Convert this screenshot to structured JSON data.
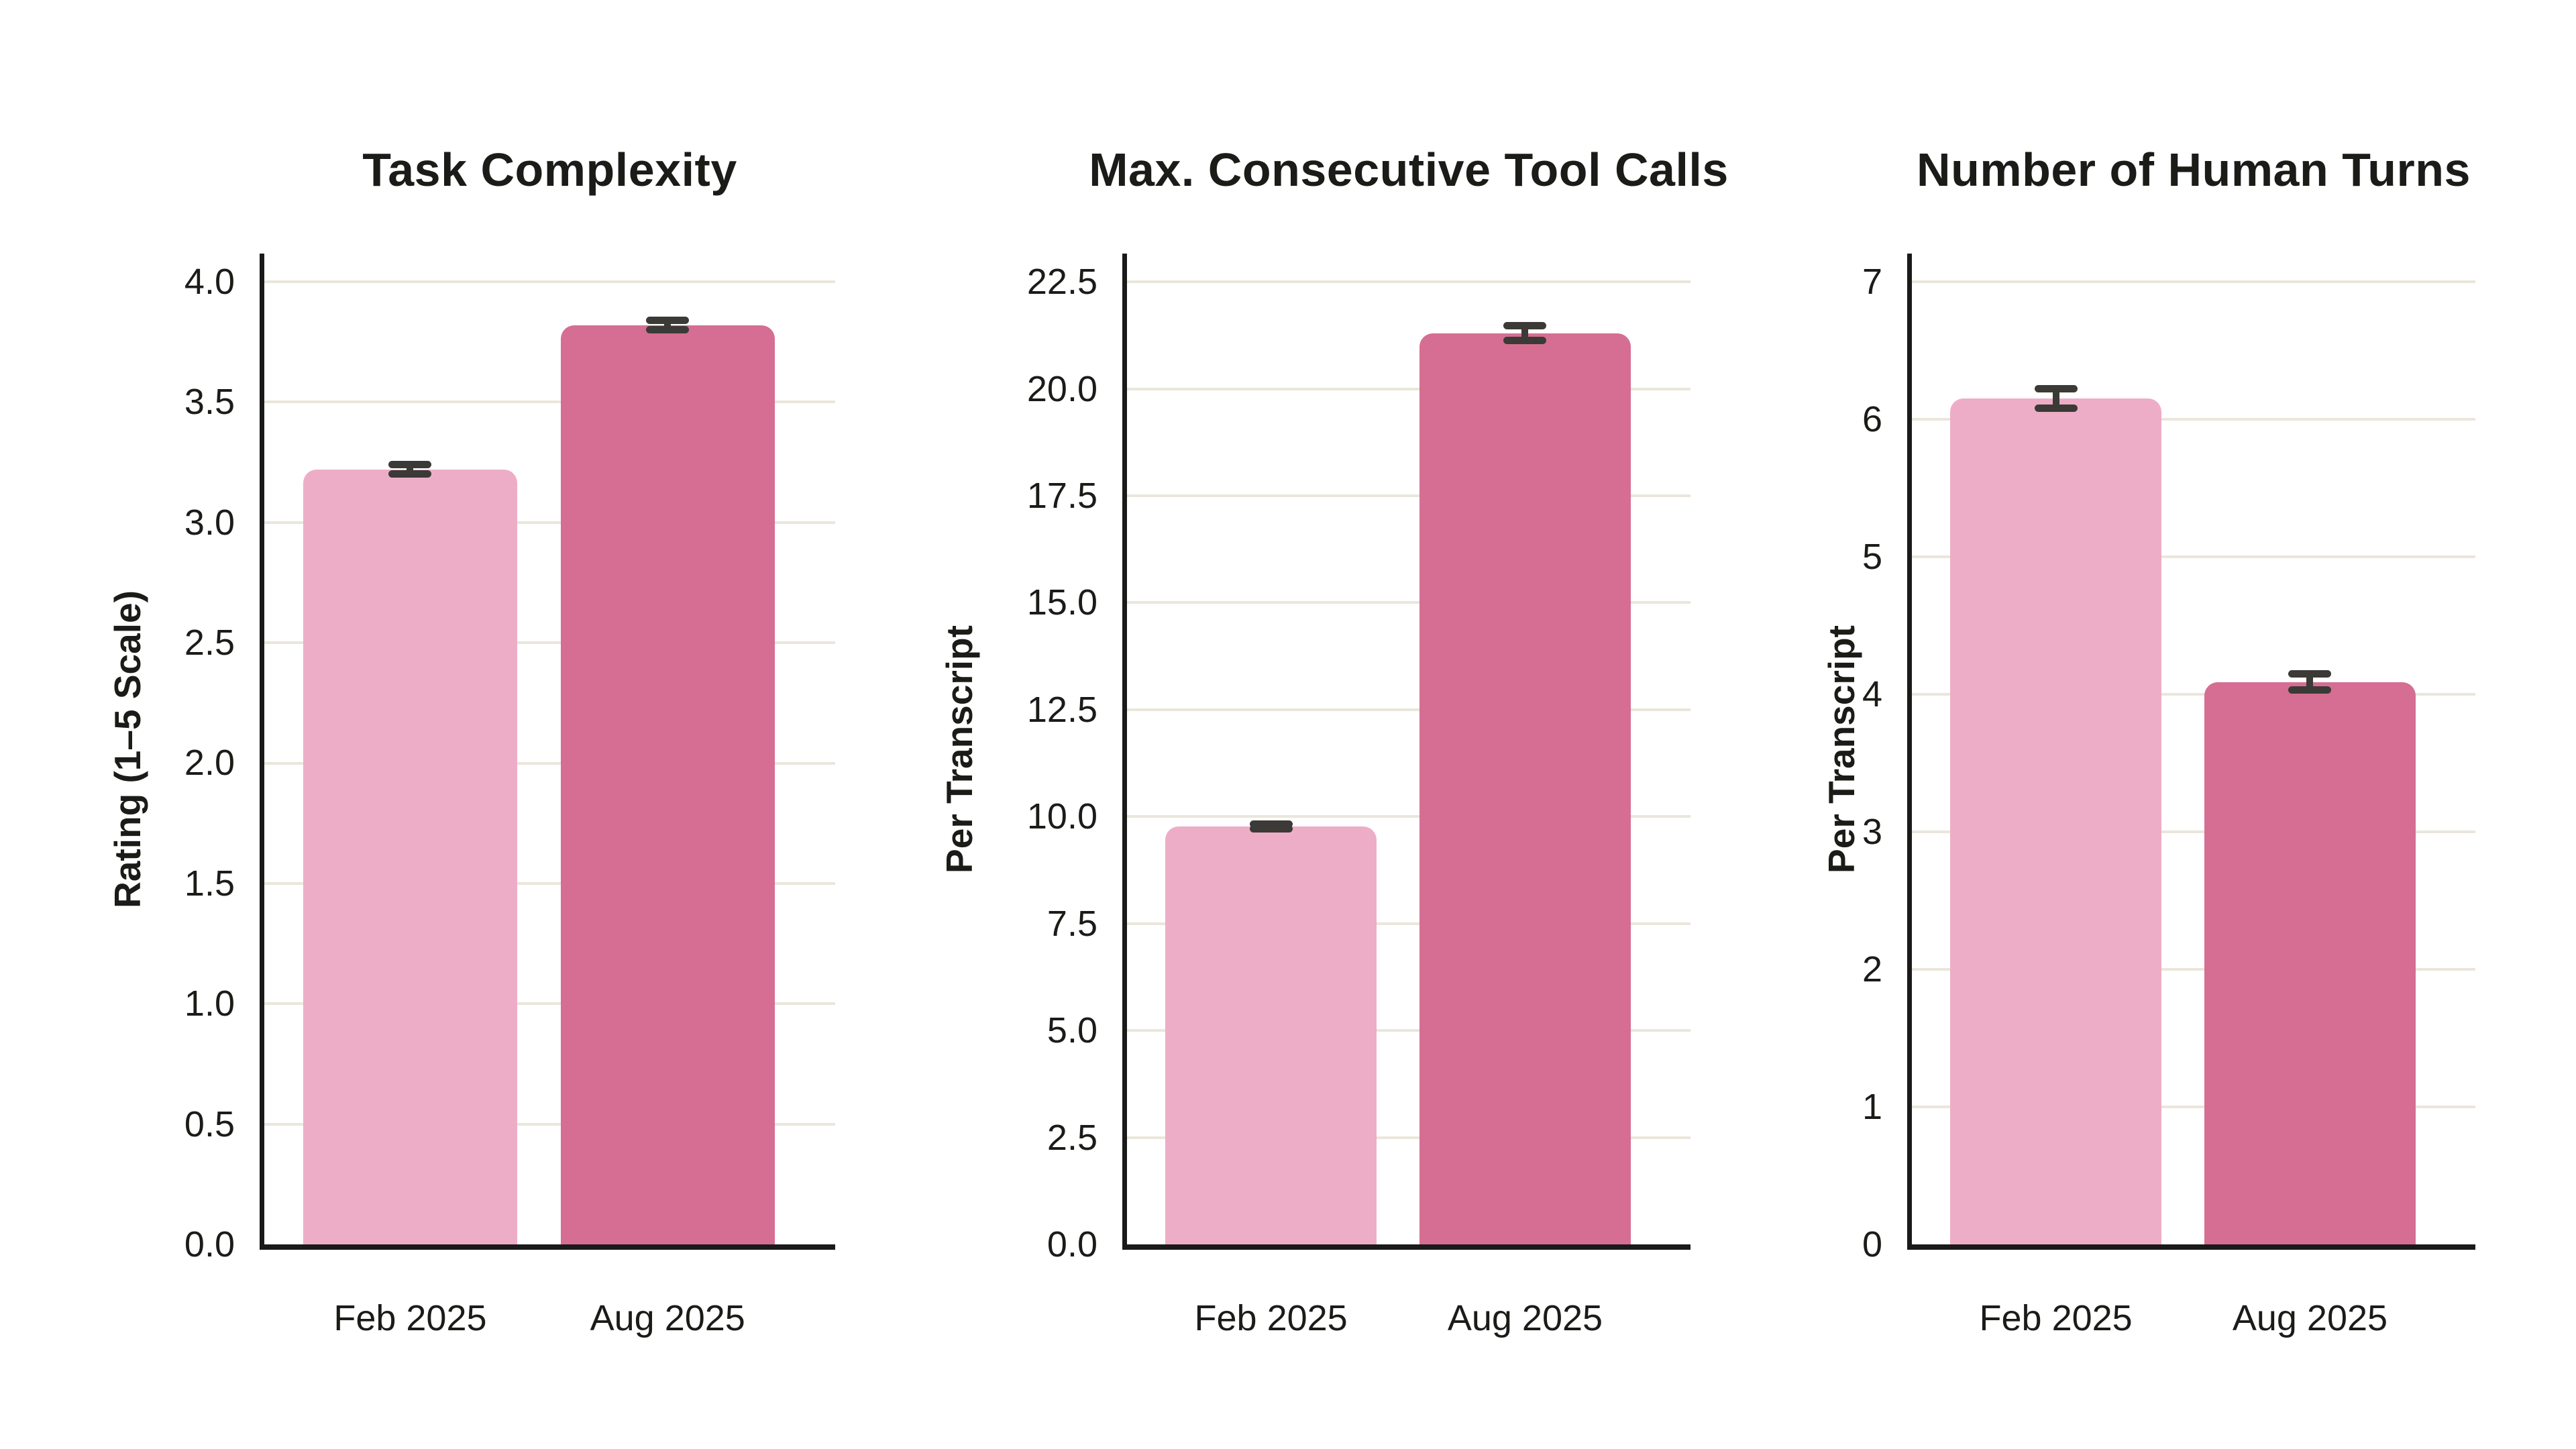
{
  "colors": {
    "background": "#ffffff",
    "text": "#1b1b18",
    "axis": "#1a1a1a",
    "grid": "#ebe6dc",
    "error_bar": "#3b3a36",
    "light_pink": "#eeadc6",
    "dark_pink": "#d56e92"
  },
  "chart_data": [
    {
      "type": "bar",
      "title": "Task Complexity",
      "ylabel": "Rating (1–5 Scale)",
      "xlabel": "",
      "categories": [
        "Feb 2025",
        "Aug 2025"
      ],
      "values": [
        3.22,
        3.82
      ],
      "errors": [
        0.02,
        0.02
      ],
      "bar_colors": [
        "#eeadc6",
        "#d56e92"
      ],
      "yticks": [
        0.0,
        0.5,
        1.0,
        1.5,
        2.0,
        2.5,
        3.0,
        3.5,
        4.0
      ],
      "ytick_labels": [
        "0.0",
        "0.5",
        "1.0",
        "1.5",
        "2.0",
        "2.5",
        "3.0",
        "3.5",
        "4.0"
      ],
      "ylim": [
        0,
        4.117
      ],
      "grid": true,
      "legend": "none"
    },
    {
      "type": "bar",
      "title": "Max. Consecutive Tool Calls",
      "ylabel": "Per Transcript",
      "xlabel": "",
      "categories": [
        "Feb 2025",
        "Aug 2025"
      ],
      "values": [
        9.77,
        21.3
      ],
      "errors": [
        0.06,
        0.17
      ],
      "bar_colors": [
        "#eeadc6",
        "#d56e92"
      ],
      "yticks": [
        0.0,
        2.5,
        5.0,
        7.5,
        10.0,
        12.5,
        15.0,
        17.5,
        20.0,
        22.5
      ],
      "ytick_labels": [
        "0.0",
        "2.5",
        "5.0",
        "7.5",
        "10.0",
        "12.5",
        "15.0",
        "17.5",
        "20.0",
        "22.5"
      ],
      "ylim": [
        0,
        23.16
      ],
      "grid": true,
      "legend": "none"
    },
    {
      "type": "bar",
      "title": "Number of Human Turns",
      "ylabel": "Per Transcript",
      "xlabel": "",
      "categories": [
        "Feb 2025",
        "Aug 2025"
      ],
      "values": [
        6.15,
        4.09
      ],
      "errors": [
        0.07,
        0.06
      ],
      "bar_colors": [
        "#eeadc6",
        "#d56e92"
      ],
      "yticks": [
        0,
        1,
        2,
        3,
        4,
        5,
        6,
        7
      ],
      "ytick_labels": [
        "0",
        "1",
        "2",
        "3",
        "4",
        "5",
        "6",
        "7"
      ],
      "ylim": [
        0,
        7.205
      ],
      "grid": true,
      "legend": "none"
    }
  ]
}
